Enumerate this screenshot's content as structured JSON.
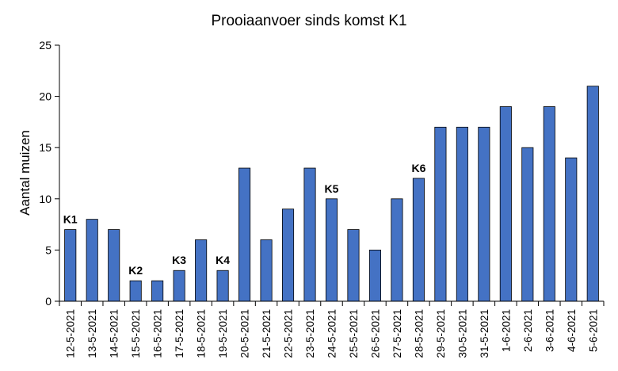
{
  "chart_data": {
    "type": "bar",
    "title": "Prooiaanvoer sinds komst K1",
    "xlabel": "",
    "ylabel": "Aantal muizen",
    "ylim": [
      0,
      25
    ],
    "yticks": [
      0,
      5,
      10,
      15,
      20,
      25
    ],
    "grid": false,
    "legend": "none",
    "categories": [
      "12-5-2021",
      "13-5-2021",
      "14-5-2021",
      "15-5-2021",
      "16-5-2021",
      "17-5-2021",
      "18-5-2021",
      "19-5-2021",
      "20-5-2021",
      "21-5-2021",
      "22-5-2021",
      "23-5-2021",
      "24-5-2021",
      "25-5-2021",
      "26-5-2021",
      "27-5-2021",
      "28-5-2021",
      "29-5-2021",
      "30-5-2021",
      "31-5-2021",
      "1-6-2021",
      "2-6-2021",
      "3-6-2021",
      "4-6-2021",
      "5-6-2021"
    ],
    "values": [
      7,
      8,
      7,
      2,
      2,
      3,
      6,
      3,
      13,
      6,
      9,
      13,
      10,
      7,
      5,
      10,
      12,
      17,
      17,
      17,
      19,
      15,
      19,
      14,
      21
    ],
    "annotations": [
      {
        "category": "12-5-2021",
        "label": "K1"
      },
      {
        "category": "15-5-2021",
        "label": "K2"
      },
      {
        "category": "17-5-2021",
        "label": "K3"
      },
      {
        "category": "19-5-2021",
        "label": "K4"
      },
      {
        "category": "24-5-2021",
        "label": "K5"
      },
      {
        "category": "28-5-2021",
        "label": "K6"
      }
    ],
    "colors": {
      "bar": "#4472C4",
      "bar_edge": "#000000",
      "axis": "#000000"
    }
  }
}
